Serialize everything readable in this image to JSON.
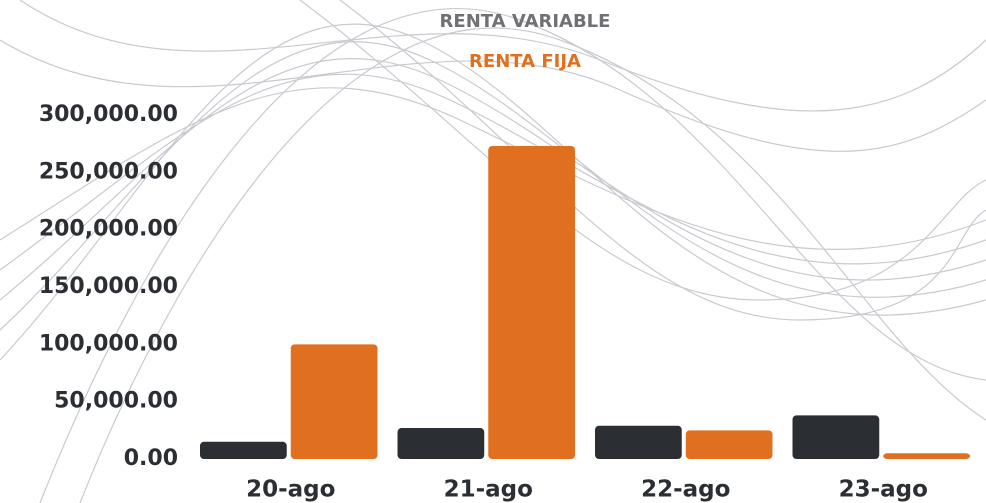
{
  "chart_data": {
    "type": "bar",
    "categories": [
      "20-ago",
      "21-ago",
      "22-ago",
      "23-ago"
    ],
    "series": [
      {
        "name": "RENTA VARIABLE",
        "color": "#2b2f33",
        "values": [
          15000,
          27000,
          29000,
          38000
        ]
      },
      {
        "name": "RENTA FIJA",
        "color": "#e07020",
        "values": [
          100000,
          273000,
          25000,
          5000
        ]
      }
    ],
    "ylim": [
      0,
      300000
    ],
    "yticks": [
      {
        "value": 0,
        "label": "0.00"
      },
      {
        "value": 50000,
        "label": "50,000.00"
      },
      {
        "value": 100000,
        "label": "100,000.00"
      },
      {
        "value": 150000,
        "label": "150,000.00"
      },
      {
        "value": 200000,
        "label": "200,000.00"
      },
      {
        "value": 250000,
        "label": "250,000.00"
      },
      {
        "value": 300000,
        "label": "300,000.00"
      }
    ],
    "grid": false,
    "legend": "top"
  }
}
